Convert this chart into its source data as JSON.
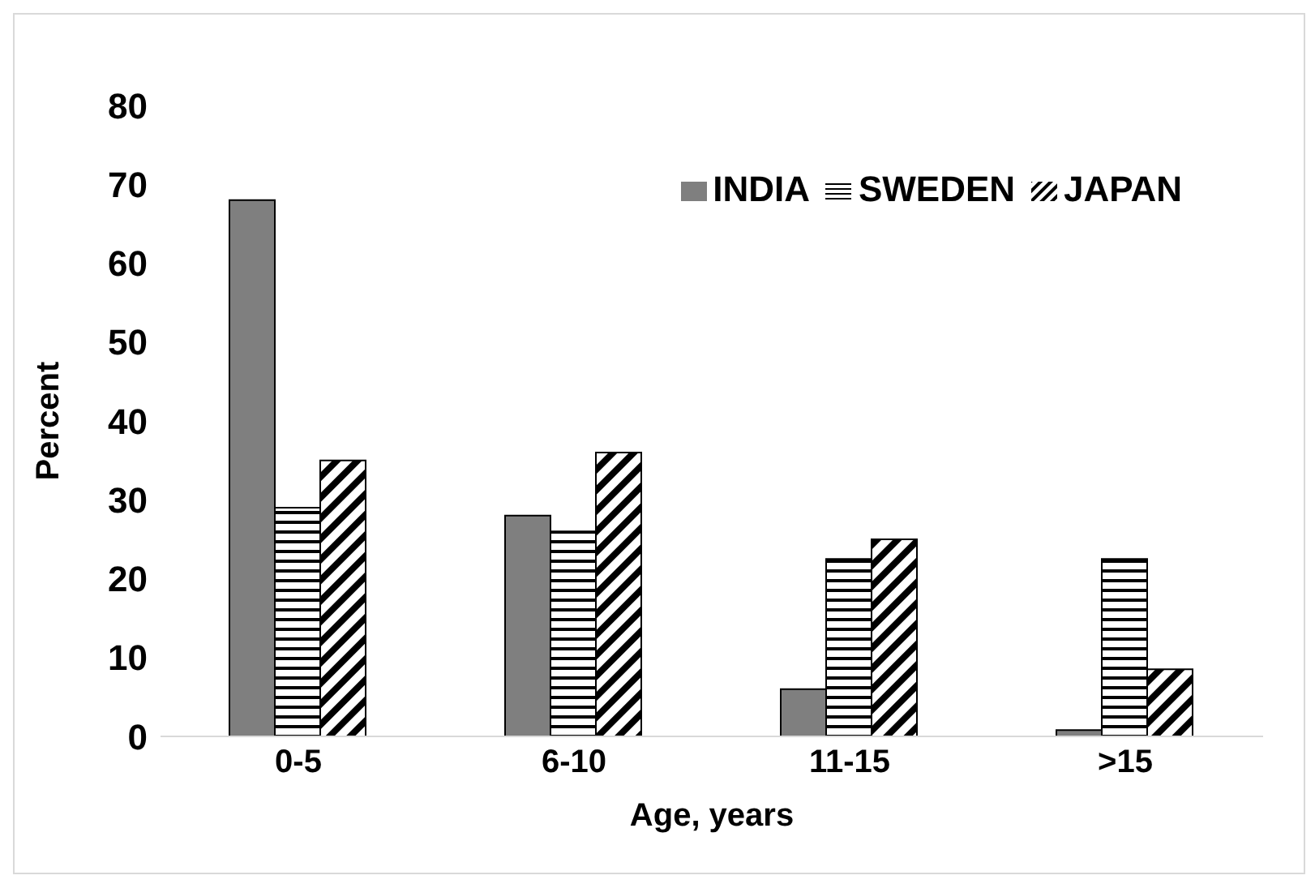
{
  "chart_data": {
    "type": "bar",
    "xlabel": "Age, years",
    "ylabel": "Percent",
    "categories": [
      "0-5",
      "6-10",
      "11-15",
      ">15"
    ],
    "series": [
      {
        "name": "INDIA",
        "color": "#7f7f7f",
        "values": [
          68,
          28,
          6,
          0.8
        ]
      },
      {
        "name": "SWEDEN",
        "color": "#000000",
        "values": [
          29,
          26,
          22.5,
          22.5
        ]
      },
      {
        "name": "JAPAN",
        "color": "#000000",
        "values": [
          35,
          36,
          25,
          8.5
        ]
      }
    ],
    "ylim": [
      0,
      80
    ],
    "yticks": [
      0,
      10,
      20,
      30,
      40,
      50,
      60,
      70,
      80
    ],
    "grid": false,
    "legend": "top right"
  }
}
